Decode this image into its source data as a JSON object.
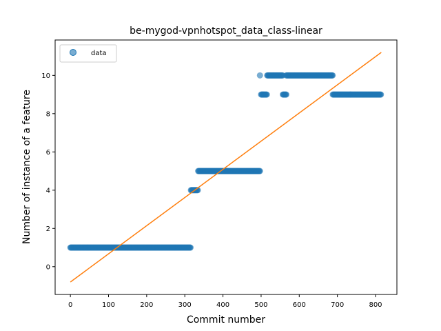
{
  "chart_data": {
    "type": "scatter",
    "title": "be-mygod-vpnhotspot_data_class-linear",
    "xlabel": "Commit number",
    "ylabel": "Number of instance of a feature",
    "xlim": [
      -40,
      856
    ],
    "ylim": [
      -1.45,
      11.85
    ],
    "xticks": [
      0,
      100,
      200,
      300,
      400,
      500,
      600,
      700,
      800
    ],
    "yticks": [
      0,
      2,
      4,
      6,
      8,
      10
    ],
    "grid": false,
    "legend": {
      "placement": "upper-left",
      "entries": [
        "data"
      ]
    },
    "colors": {
      "data": "#1f77b4",
      "fit": "#ff7f0e"
    },
    "series": [
      {
        "name": "data",
        "kind": "scatter",
        "segments": [
          {
            "x_start": 0,
            "x_end": 316,
            "y": 1
          },
          {
            "x_start": 316,
            "x_end": 335,
            "y": 4
          },
          {
            "x_start": 335,
            "x_end": 497,
            "y": 5
          },
          {
            "x_start": 497,
            "x_end": 497,
            "y": 10
          },
          {
            "x_start": 500,
            "x_end": 516,
            "y": 9
          },
          {
            "x_start": 516,
            "x_end": 557,
            "y": 10
          },
          {
            "x_start": 557,
            "x_end": 566,
            "y": 9
          },
          {
            "x_start": 566,
            "x_end": 688,
            "y": 10
          },
          {
            "x_start": 688,
            "x_end": 815,
            "y": 9
          }
        ]
      },
      {
        "name": "",
        "kind": "line",
        "x": [
          0,
          815
        ],
        "y": [
          -0.8,
          11.2
        ]
      }
    ]
  }
}
